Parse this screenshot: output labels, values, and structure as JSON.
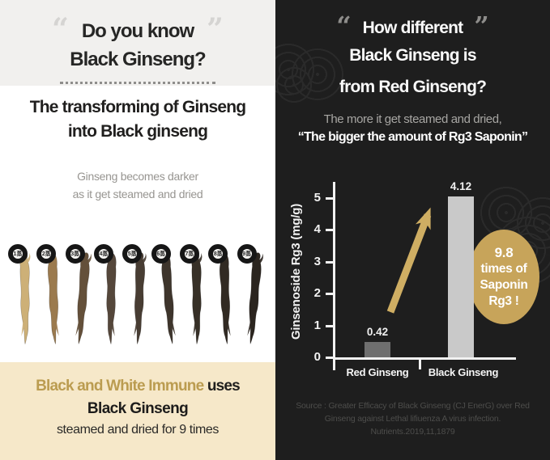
{
  "left_panel": {
    "quote_open": "“",
    "quote_close": "”",
    "heading_line1": "Do you know",
    "heading_line2": "Black Ginseng?",
    "headline_line1": "The transforming of Ginseng",
    "headline_line2": "into Black ginseng",
    "subtext_line1": "Ginseng becomes darker",
    "subtext_line2": "as it get steamed and dried",
    "roots": {
      "labels": [
        "1蒸",
        "2蒸",
        "3蒸",
        "4蒸",
        "5蒸",
        "6蒸",
        "7蒸",
        "8蒸",
        "9蒸"
      ],
      "colors": [
        "#cdb077",
        "#9b7a4e",
        "#64503a",
        "#55473b",
        "#483d33",
        "#3e352c",
        "#373027",
        "#312a23",
        "#2b251f"
      ]
    },
    "footer": {
      "brand": "Black and White Immune",
      "rest": " uses",
      "line2": "Black Ginseng",
      "line3": "steamed and dried for 9 times"
    }
  },
  "right_panel": {
    "quote_open": "“",
    "quote_close": "”",
    "heading_line1": "How different",
    "heading_line2": "Black Ginseng is",
    "heading_line3": "from Red Ginseng?",
    "subtitle_line1": "The more it get steamed and dried,",
    "subtitle_line2": "“The bigger the amount of Rg3 Saponin”",
    "badge_lines": [
      "9.8",
      "times of",
      "Saponin",
      "Rg3 !"
    ],
    "source_line1": "Source : Greater Efficacy of Black Ginseng (CJ EnerG) over Red",
    "source_line2": "Ginseng against Lethal lifiuenza A virus infection.",
    "source_line3": "Nutrients.2019,11,1879"
  },
  "chart_data": {
    "type": "bar",
    "categories": [
      "Red Ginseng",
      "Black Ginseng"
    ],
    "values": [
      0.42,
      4.12
    ],
    "value_labels": [
      "0.42",
      "4.12"
    ],
    "title": "",
    "xlabel": "",
    "ylabel": "Ginsenoside Rg3 (mg/g)",
    "ylim": [
      0,
      5
    ],
    "yticks": [
      0,
      1,
      2,
      3,
      4,
      5
    ],
    "grid": false,
    "legend": false,
    "bar_colors": [
      "#6f6f6f",
      "#c9c9c9"
    ],
    "annotation": "9.8 times of Saponin Rg3 !",
    "arrow": "gold upward arrow from Red Ginseng bar toward Black Ginseng bar"
  },
  "colors": {
    "left_top_bg": "#f1f0ee",
    "footer_bg": "#f6e8c9",
    "brand_gold": "#bb9c50",
    "right_bg": "#1e1e1e",
    "badge_gold": "#c7a45a",
    "arrow_gold": "#cfae63",
    "axis_white": "#f2f2f2"
  }
}
